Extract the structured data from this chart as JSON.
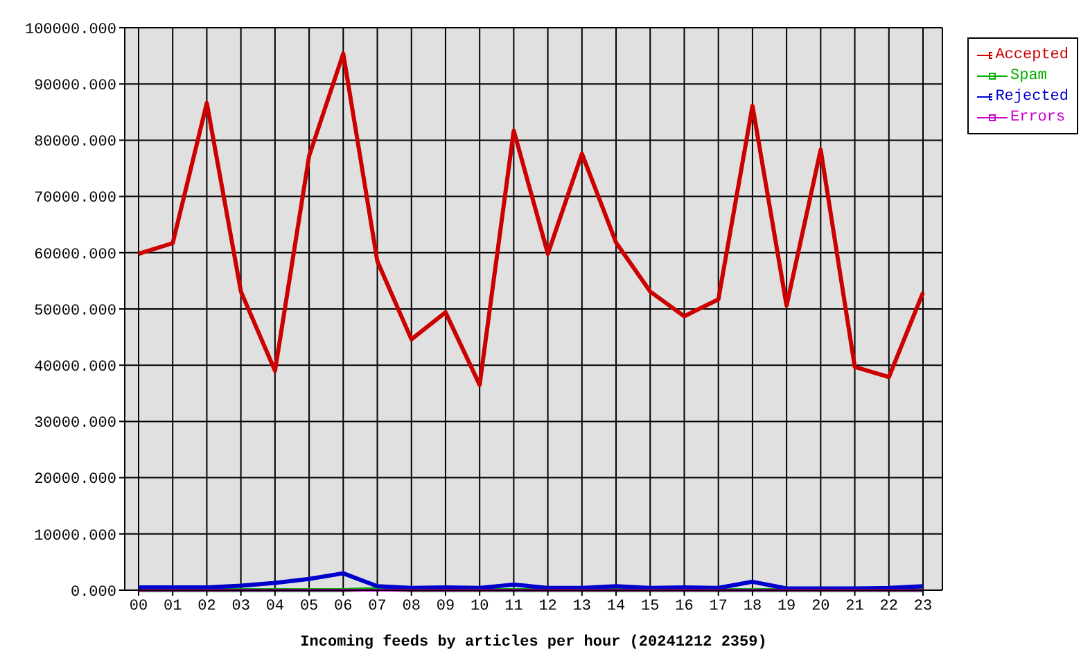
{
  "chart_data": {
    "type": "line",
    "xlabel": "Incoming feeds by articles per hour (20241212 2359)",
    "categories": [
      "00",
      "01",
      "02",
      "03",
      "04",
      "05",
      "06",
      "07",
      "08",
      "09",
      "10",
      "11",
      "12",
      "13",
      "14",
      "15",
      "16",
      "17",
      "18",
      "19",
      "20",
      "21",
      "22",
      "23"
    ],
    "series": [
      {
        "name": "Accepted",
        "color": "#cc0000",
        "values": [
          59800,
          61700,
          86600,
          53100,
          39000,
          77200,
          95400,
          58500,
          44600,
          49400,
          36500,
          81700,
          59800,
          77600,
          61800,
          53100,
          48700,
          51700,
          86100,
          50600,
          78300,
          39700,
          37900,
          52900
        ]
      },
      {
        "name": "Spam",
        "color": "#00b000",
        "values": [
          0,
          0,
          0,
          0,
          0,
          0,
          0,
          200,
          0,
          0,
          0,
          0,
          0,
          0,
          0,
          0,
          0,
          0,
          0,
          0,
          0,
          0,
          0,
          0
        ]
      },
      {
        "name": "Rejected",
        "color": "#0000cc",
        "values": [
          500,
          500,
          500,
          800,
          1300,
          2000,
          3000,
          700,
          400,
          500,
          400,
          1000,
          400,
          400,
          700,
          400,
          500,
          400,
          1500,
          300,
          300,
          300,
          400,
          700
        ]
      },
      {
        "name": "Errors",
        "color": "#cc00cc",
        "values": [
          0,
          0,
          0,
          0,
          0,
          0,
          0,
          0,
          0,
          0,
          0,
          0,
          0,
          0,
          0,
          0,
          0,
          0,
          0,
          0,
          0,
          0,
          0,
          0
        ]
      }
    ],
    "ylim": [
      0,
      100000
    ],
    "yticks": [
      {
        "value": 0,
        "label": "0.000"
      },
      {
        "value": 10000,
        "label": "10000.000"
      },
      {
        "value": 20000,
        "label": "20000.000"
      },
      {
        "value": 30000,
        "label": "30000.000"
      },
      {
        "value": 40000,
        "label": "40000.000"
      },
      {
        "value": 50000,
        "label": "50000.000"
      },
      {
        "value": 60000,
        "label": "60000.000"
      },
      {
        "value": 70000,
        "label": "70000.000"
      },
      {
        "value": 80000,
        "label": "80000.000"
      },
      {
        "value": 90000,
        "label": "90000.000"
      },
      {
        "value": 100000,
        "label": "100000.000"
      }
    ],
    "grid": true,
    "legend": "top right",
    "marker": "none",
    "line_style": "solid"
  }
}
